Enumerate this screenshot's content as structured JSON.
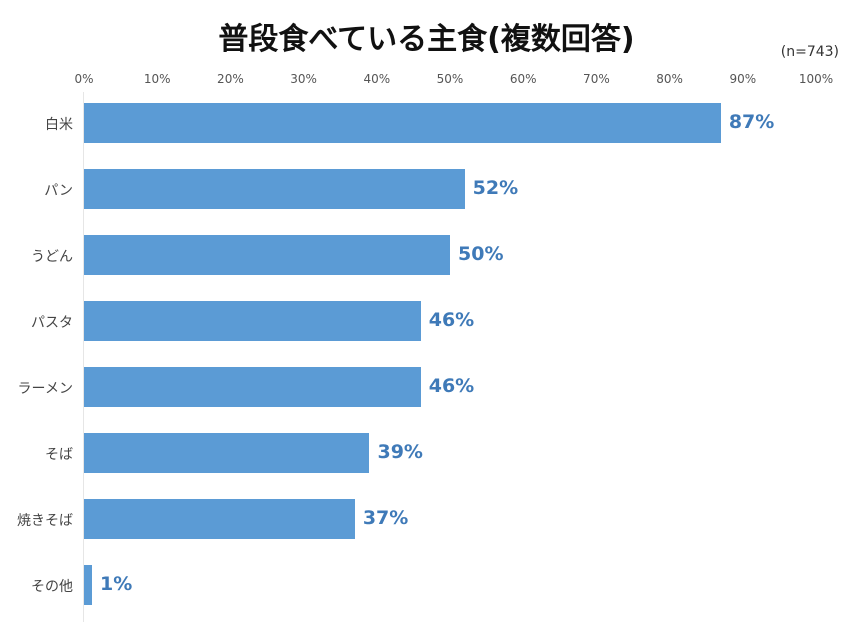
{
  "title": "普段食べている主食(複数回答)",
  "sample_size": "(n=743)",
  "axis_ticks": [
    "0%",
    "10%",
    "20%",
    "30%",
    "40%",
    "50%",
    "60%",
    "70%",
    "80%",
    "90%",
    "100%"
  ],
  "colors": {
    "bar": "#5b9bd5",
    "value_label": "#3f7ab8"
  },
  "rows": [
    {
      "label": "白米",
      "value": 87,
      "value_label": "87%"
    },
    {
      "label": "パン",
      "value": 52,
      "value_label": "52%"
    },
    {
      "label": "うどん",
      "value": 50,
      "value_label": "50%"
    },
    {
      "label": "パスタ",
      "value": 46,
      "value_label": "46%"
    },
    {
      "label": "ラーメン",
      "value": 46,
      "value_label": "46%"
    },
    {
      "label": "そば",
      "value": 39,
      "value_label": "39%"
    },
    {
      "label": "焼きそば",
      "value": 37,
      "value_label": "37%"
    },
    {
      "label": "その他",
      "value": 1,
      "value_label": "1%"
    }
  ],
  "chart_data": {
    "type": "bar",
    "orientation": "horizontal",
    "title": "普段食べている主食(複数回答)",
    "subtitle": "(n=743)",
    "categories": [
      "白米",
      "パン",
      "うどん",
      "パスタ",
      "ラーメン",
      "そば",
      "焼きそば",
      "その他"
    ],
    "values": [
      87,
      52,
      50,
      46,
      46,
      39,
      37,
      1
    ],
    "xlabel": "",
    "ylabel": "",
    "xlim": [
      0,
      100
    ],
    "x_tick_labels": [
      "0%",
      "10%",
      "20%",
      "30%",
      "40%",
      "50%",
      "60%",
      "70%",
      "80%",
      "90%",
      "100%"
    ],
    "tick_position": "top",
    "grid": false,
    "legend": null,
    "data_labels": [
      "87%",
      "52%",
      "50%",
      "46%",
      "46%",
      "39%",
      "37%",
      "1%"
    ]
  }
}
